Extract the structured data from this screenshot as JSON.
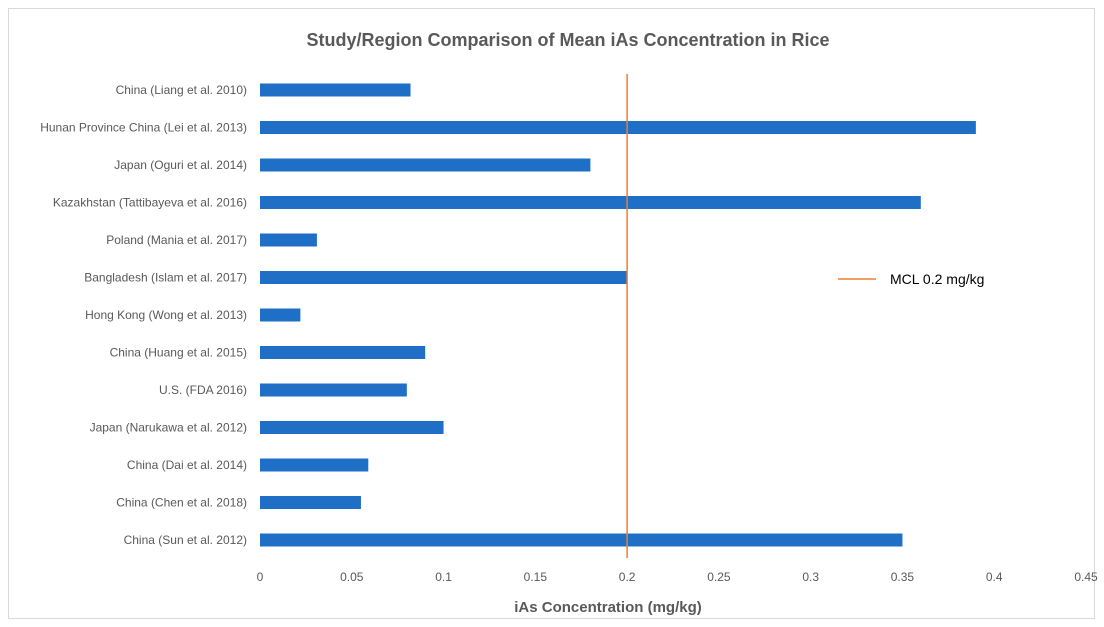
{
  "chart_data": {
    "type": "bar",
    "orientation": "horizontal",
    "title": "Study/Region Comparison of Mean iAs Concentration in Rice",
    "xlabel": "iAs Concentration (mg/kg)",
    "ylabel": "",
    "xlim": [
      0,
      0.45
    ],
    "x_ticks": [
      "0",
      "0.05",
      "0.1",
      "0.15",
      "0.2",
      "0.25",
      "0.3",
      "0.35",
      "0.4",
      "0.45"
    ],
    "grid": false,
    "categories": [
      "China (Liang et al. 2010)",
      "Hunan Province China (Lei et al. 2013)",
      "Japan (Oguri et al. 2014)",
      "Kazakhstan (Tattibayeva et al. 2016)",
      "Poland (Mania et al. 2017)",
      "Bangladesh (Islam et al. 2017)",
      "Hong Kong (Wong et al. 2013)",
      "China (Huang et al. 2015)",
      "U.S. (FDA 2016)",
      "Japan (Narukawa et al. 2012)",
      "China (Dai et al. 2014)",
      "China (Chen et al. 2018)",
      "China (Sun et al. 2012)"
    ],
    "values": [
      0.082,
      0.39,
      0.18,
      0.36,
      0.031,
      0.2,
      0.022,
      0.09,
      0.08,
      0.1,
      0.059,
      0.055,
      0.35
    ],
    "reference_line": {
      "name": "MCL 0.2 mg/kg",
      "value": 0.2
    },
    "legend_position": "right",
    "colors": {
      "bar": "#1f6fc6",
      "reference_line": "#ed7d31"
    }
  }
}
